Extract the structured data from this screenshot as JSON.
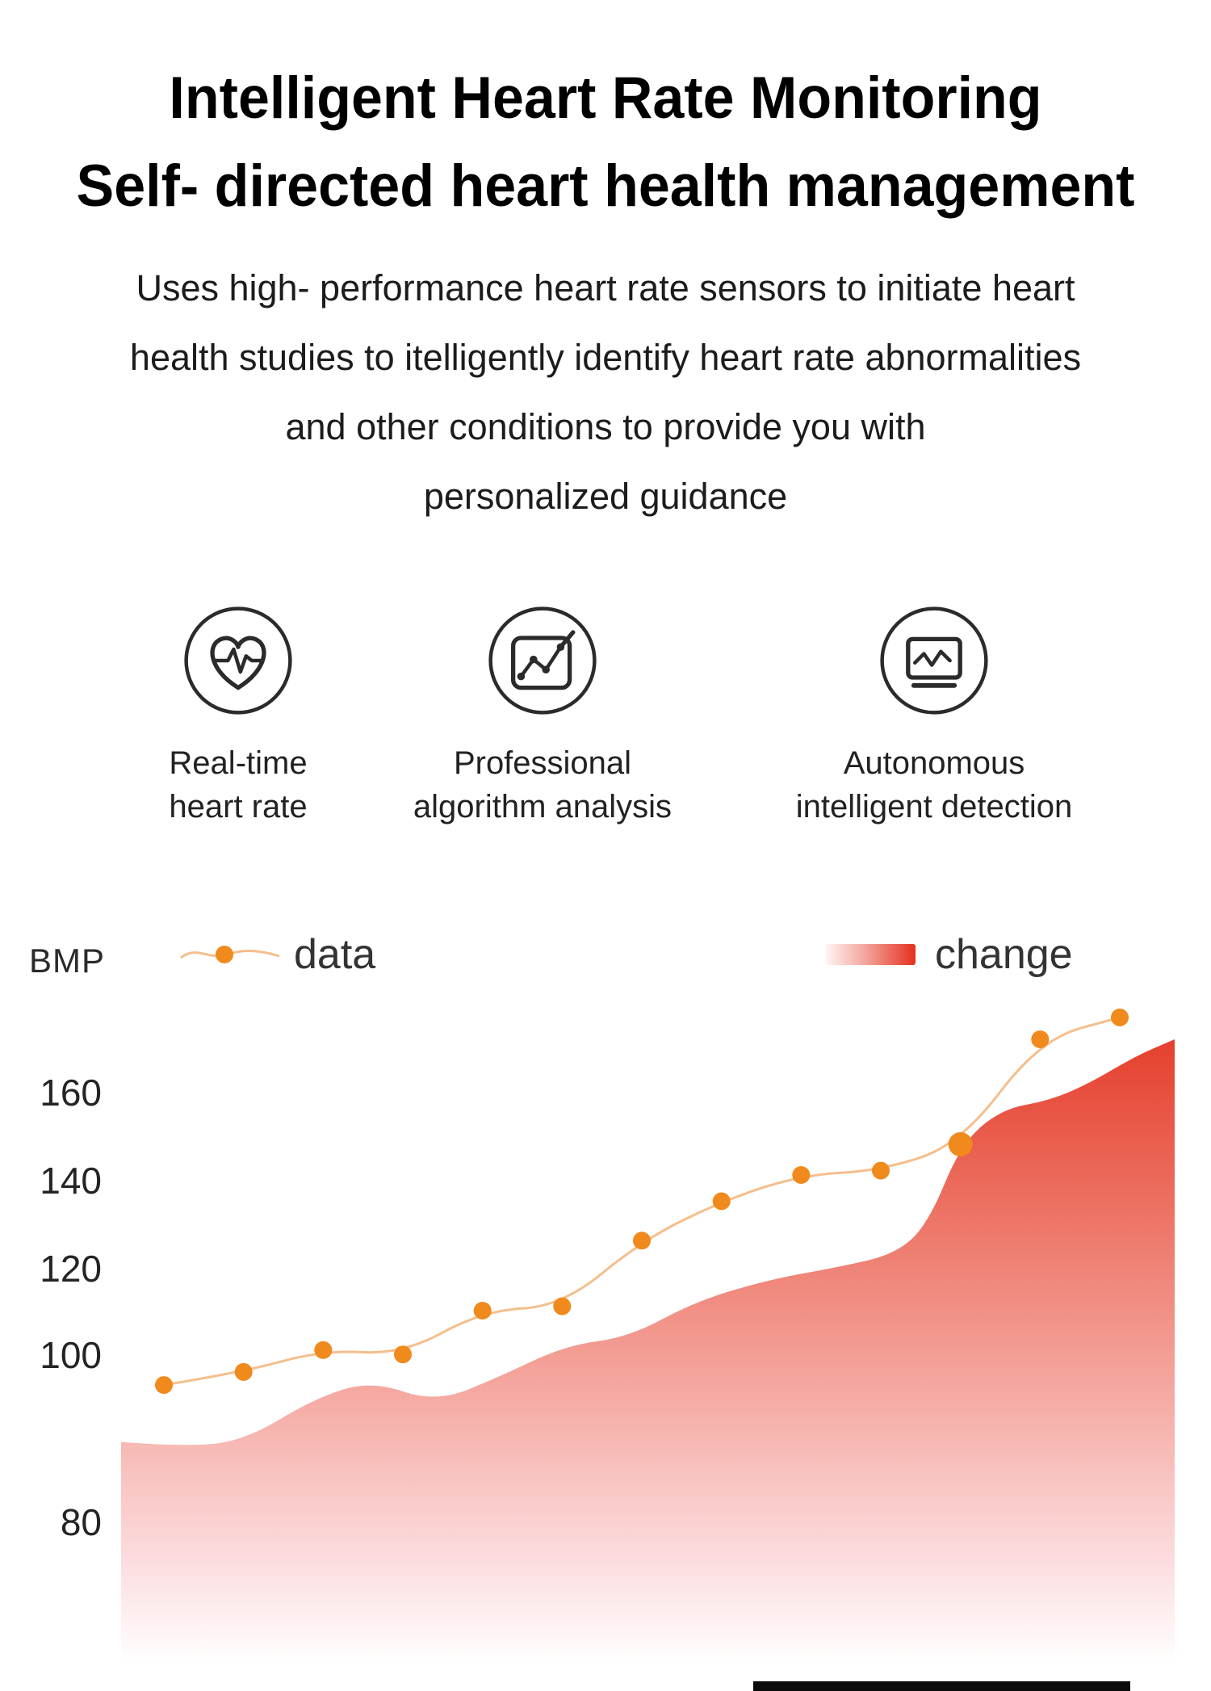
{
  "title": {
    "line1": "Intelligent Heart Rate Monitoring",
    "line2": "Self- directed heart health management"
  },
  "intro": {
    "lines": [
      "Uses high- performance heart rate sensors to initiate heart",
      "health studies to itelligently identify heart rate abnormalities",
      "and other conditions to provide you with",
      "personalized guidance"
    ]
  },
  "features": [
    {
      "icon": "heart-pulse-icon",
      "label_line1": "Real-time",
      "label_line2": "heart rate"
    },
    {
      "icon": "line-chart-icon",
      "label_line1": "Professional",
      "label_line2": "algorithm analysis"
    },
    {
      "icon": "monitor-icon",
      "label_line1": "Autonomous",
      "label_line2": "intelligent detection"
    }
  ],
  "chart_data": {
    "type": "line",
    "unit_label": "BMP",
    "yticks": [
      "160",
      "140",
      "120",
      "100",
      "80"
    ],
    "ylim": [
      75,
      185
    ],
    "grid": false,
    "legend_position": "top",
    "legend": [
      {
        "name": "data",
        "marker": "orange-dot-line",
        "color": "#F08A1D"
      },
      {
        "name": "change",
        "marker": "red-gradient-swatch",
        "color": "#E5301E"
      }
    ],
    "highlight_index": 10,
    "series": [
      {
        "name": "data",
        "type": "scatter-line",
        "color": "#F08A1D",
        "line_color": "#F5BE8C",
        "values": [
          93,
          96,
          101,
          100,
          110,
          111,
          126,
          135,
          141,
          142,
          148,
          172,
          177
        ]
      },
      {
        "name": "change",
        "type": "area",
        "gradient_top": "#E43522",
        "gradient_bottom": "#FFFFFF",
        "profile": [
          [
            150,
            80
          ],
          [
            220,
            79
          ],
          [
            300,
            80
          ],
          [
            390,
            90
          ],
          [
            460,
            94
          ],
          [
            540,
            89
          ],
          [
            620,
            95
          ],
          [
            700,
            102
          ],
          [
            780,
            104
          ],
          [
            860,
            112
          ],
          [
            950,
            117
          ],
          [
            1040,
            120
          ],
          [
            1110,
            123
          ],
          [
            1150,
            130
          ],
          [
            1190,
            148
          ],
          [
            1240,
            156
          ],
          [
            1300,
            158
          ],
          [
            1350,
            162
          ],
          [
            1405,
            168
          ],
          [
            1455,
            172
          ]
        ]
      }
    ]
  },
  "colors": {
    "accent_orange": "#F08A1D",
    "accent_red": "#E5301E",
    "title_text": "#000000",
    "body_text": "#1C1C1C"
  }
}
